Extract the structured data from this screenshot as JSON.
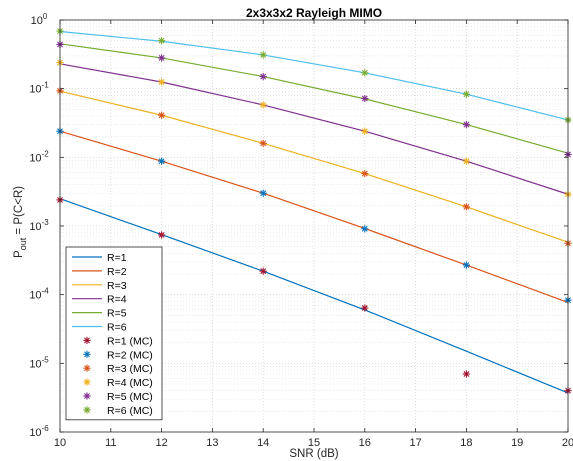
{
  "chart_data": {
    "type": "line",
    "title": "2x3x3x2 Rayleigh MIMO",
    "xlabel": "SNR (dB)",
    "ylabel": {
      "main": "P",
      "sub": "out",
      "rest": " = P(C<R)"
    },
    "x_scale": "linear",
    "y_scale": "log",
    "xlim": [
      10,
      20
    ],
    "ylim": [
      1e-06,
      1
    ],
    "grid": true,
    "minor_grid": true,
    "legend_location": "lower-left",
    "x_ticks": [
      "10",
      "11",
      "12",
      "13",
      "14",
      "15",
      "16",
      "17",
      "18",
      "19",
      "20"
    ],
    "y_ticks": [
      {
        "base": "10",
        "exp": "-6"
      },
      {
        "base": "10",
        "exp": "-5"
      },
      {
        "base": "10",
        "exp": "-4"
      },
      {
        "base": "10",
        "exp": "-3"
      },
      {
        "base": "10",
        "exp": "-2"
      },
      {
        "base": "10",
        "exp": "-1"
      },
      {
        "base": "10",
        "exp": "0"
      }
    ],
    "series": [
      {
        "name": "R=1",
        "color": "#0072BD",
        "style": "line",
        "x": [
          10,
          12,
          14,
          16,
          18,
          20
        ],
        "y": [
          0.0025,
          0.00075,
          0.00022,
          6e-05,
          1.5e-05,
          3.7e-06
        ]
      },
      {
        "name": "R=2",
        "color": "#D95319",
        "style": "line",
        "x": [
          10,
          12,
          14,
          16,
          18,
          20
        ],
        "y": [
          0.024,
          0.0088,
          0.003,
          0.00092,
          0.00027,
          7.7e-05
        ]
      },
      {
        "name": "R=3",
        "color": "#EDB120",
        "style": "line",
        "x": [
          10,
          12,
          14,
          16,
          18,
          20
        ],
        "y": [
          0.092,
          0.041,
          0.016,
          0.0058,
          0.0019,
          0.00058
        ]
      },
      {
        "name": "R=4",
        "color": "#7E2F8E",
        "style": "line",
        "x": [
          10,
          12,
          14,
          16,
          18,
          20
        ],
        "y": [
          0.23,
          0.125,
          0.058,
          0.024,
          0.0088,
          0.0029
        ]
      },
      {
        "name": "R=5",
        "color": "#77AC30",
        "style": "line",
        "x": [
          10,
          12,
          14,
          16,
          18,
          20
        ],
        "y": [
          0.45,
          0.28,
          0.15,
          0.071,
          0.03,
          0.0115
        ]
      },
      {
        "name": "R=6",
        "color": "#4DBEEE",
        "style": "line",
        "x": [
          10,
          12,
          14,
          16,
          18,
          20
        ],
        "y": [
          0.68,
          0.49,
          0.31,
          0.17,
          0.083,
          0.035
        ]
      },
      {
        "name": "R=1 (MC)",
        "color": "#A2142F",
        "style": "marker",
        "x": [
          10,
          12,
          14,
          16,
          18,
          20
        ],
        "y": [
          0.0024,
          0.00074,
          0.00022,
          6.4e-05,
          7e-06,
          4e-06
        ]
      },
      {
        "name": "R=2 (MC)",
        "color": "#0072BD",
        "style": "marker",
        "x": [
          10,
          12,
          14,
          16,
          18,
          20
        ],
        "y": [
          0.024,
          0.0088,
          0.003,
          0.00091,
          0.00027,
          8.3e-05
        ]
      },
      {
        "name": "R=3 (MC)",
        "color": "#D95319",
        "style": "marker",
        "x": [
          10,
          12,
          14,
          16,
          18,
          20
        ],
        "y": [
          0.093,
          0.041,
          0.016,
          0.0058,
          0.0019,
          0.00056
        ]
      },
      {
        "name": "R=4 (MC)",
        "color": "#EDB120",
        "style": "marker",
        "x": [
          10,
          12,
          14,
          16,
          18,
          20
        ],
        "y": [
          0.24,
          0.125,
          0.058,
          0.024,
          0.0088,
          0.0029
        ]
      },
      {
        "name": "R=5 (MC)",
        "color": "#7E2F8E",
        "style": "marker",
        "x": [
          10,
          12,
          14,
          16,
          18,
          20
        ],
        "y": [
          0.44,
          0.28,
          0.15,
          0.072,
          0.03,
          0.011
        ]
      },
      {
        "name": "R=6 (MC)",
        "color": "#77AC30",
        "style": "marker",
        "x": [
          10,
          12,
          14,
          16,
          18,
          20
        ],
        "y": [
          0.69,
          0.5,
          0.31,
          0.17,
          0.083,
          0.035
        ]
      }
    ]
  }
}
